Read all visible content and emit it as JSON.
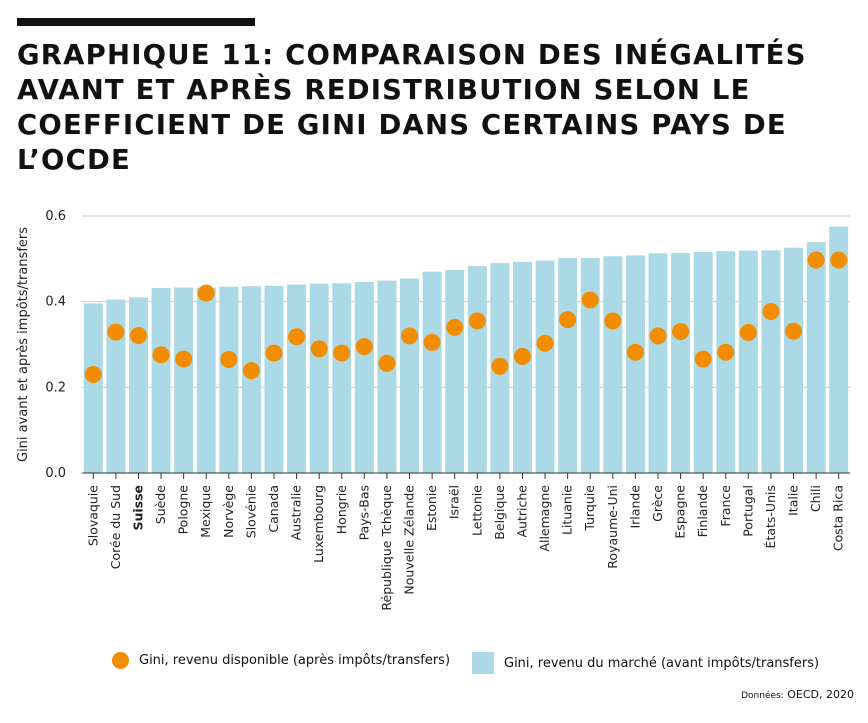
{
  "title": "GRAPHIQUE 11: COMPARAISON DES INÉGALITÉS AVANT ET APRÈS REDISTRIBUTION SELON LE COEFFICIENT DE GINI DANS CERTAINS PAYS DE L’OCDE",
  "legend": {
    "disposable": "Gini, revenu disponible (après impôts/transfers)",
    "market": "Gini, revenu du marché (avant impôts/transfers)"
  },
  "source": {
    "label": "Données:",
    "value": "OECD, 2020"
  },
  "colors": {
    "bar": "#abd9e6",
    "dot": "#f28c00",
    "grid": "#c9c9c9",
    "axis": "#333333"
  },
  "chart_data": {
    "type": "bar",
    "ylabel": "Gini avant et après impôts/transfers",
    "ylim": [
      0,
      0.6
    ],
    "yticks": [
      "0.0",
      "0.2",
      "0.4",
      "0.6"
    ],
    "grid": true,
    "legend_position": "bottom",
    "highlight_category": "Suisse",
    "categories": [
      "Slovaquie",
      "Corée du Sud",
      "Suisse",
      "Suède",
      "Pologne",
      "Mexique",
      "Norvège",
      "Slovénie",
      "Canada",
      "Australie",
      "Luxembourg",
      "Hongrie",
      "Pays-Bas",
      "République Tchèque",
      "Nouvelle Zélande",
      "Estonie",
      "Israël",
      "Lettonie",
      "Belgique",
      "Autriche",
      "Allemagne",
      "Lituanie",
      "Turquie",
      "Royaume-Uni",
      "Irlande",
      "Grèce",
      "Espagne",
      "Finlande",
      "France",
      "Portugal",
      "États-Unis",
      "Italie",
      "Chili",
      "Costa Rica"
    ],
    "series": [
      {
        "name": "Gini, revenu du marché (avant impôts/transfers)",
        "kind": "bar",
        "values": [
          0.396,
          0.405,
          0.41,
          0.432,
          0.433,
          0.433,
          0.435,
          0.436,
          0.437,
          0.44,
          0.442,
          0.443,
          0.446,
          0.449,
          0.454,
          0.47,
          0.474,
          0.483,
          0.49,
          0.493,
          0.496,
          0.502,
          0.502,
          0.506,
          0.508,
          0.513,
          0.514,
          0.516,
          0.518,
          0.519,
          0.52,
          0.526,
          0.539,
          0.575
        ]
      },
      {
        "name": "Gini, revenu disponible (après impôts/transfers)",
        "kind": "point",
        "values": [
          0.23,
          0.329,
          0.321,
          0.276,
          0.266,
          0.42,
          0.265,
          0.239,
          0.28,
          0.318,
          0.29,
          0.28,
          0.295,
          0.256,
          0.32,
          0.305,
          0.34,
          0.355,
          0.249,
          0.272,
          0.303,
          0.358,
          0.404,
          0.355,
          0.282,
          0.32,
          0.33,
          0.266,
          0.282,
          0.328,
          0.377,
          0.331,
          0.497,
          0.497
        ]
      }
    ]
  }
}
